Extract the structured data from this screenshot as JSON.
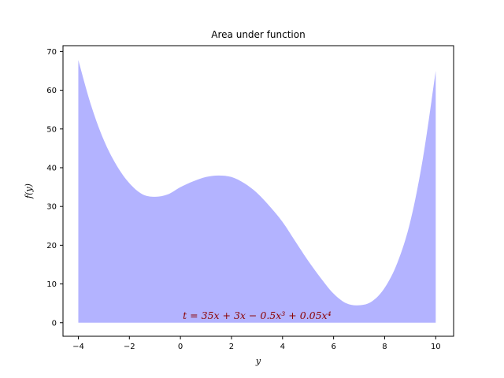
{
  "chart_data": {
    "type": "area",
    "title": "Area under function",
    "xlabel": "y",
    "ylabel": "f(y)",
    "xlim": [
      -4.6,
      10.7
    ],
    "ylim": [
      -3.5,
      71.5
    ],
    "xticks": [
      -4,
      -2,
      0,
      2,
      4,
      6,
      8,
      10
    ],
    "yticks": [
      0,
      10,
      20,
      30,
      40,
      50,
      60,
      70
    ],
    "x": [
      -4,
      -3.5,
      -3,
      -2.5,
      -2,
      -1.5,
      -1,
      -0.5,
      0,
      0.5,
      1,
      1.5,
      2,
      2.5,
      3,
      3.5,
      4,
      4.5,
      5,
      5.5,
      6,
      6.5,
      7,
      7.5,
      8,
      8.5,
      9,
      9.5,
      10
    ],
    "y": [
      67.8,
      56.1,
      47.1,
      40.6,
      36.0,
      33.2,
      32.5,
      33.1,
      35.0,
      36.5,
      37.6,
      38.0,
      37.6,
      36.0,
      33.5,
      30.0,
      26.0,
      21.0,
      16.0,
      11.5,
      7.5,
      5.0,
      4.5,
      5.5,
      9.0,
      15.5,
      26.0,
      42.5,
      65.0
    ],
    "fill_color": "#b3b3ff",
    "annotation": {
      "text": "t = 35x + 3x − 0.5x³ + 0.05x⁴",
      "x": 3.0,
      "y": 1.0,
      "color": "#8b0000"
    },
    "grid": false,
    "legend": "none"
  }
}
